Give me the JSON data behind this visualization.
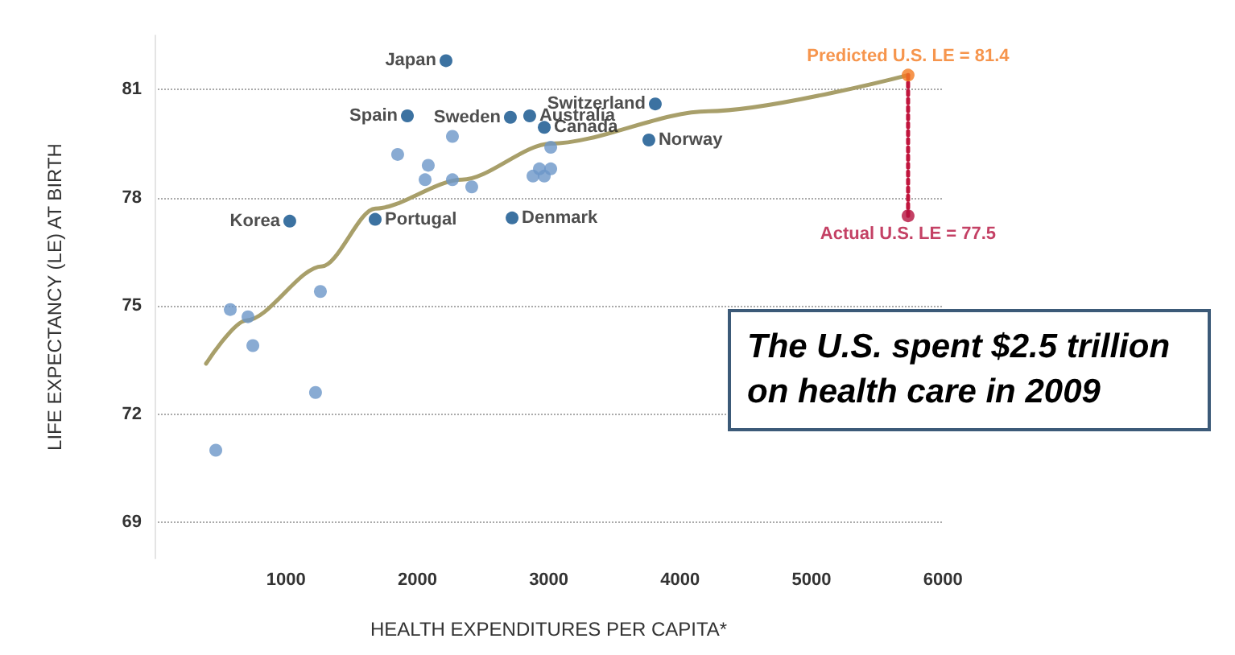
{
  "chart_data": {
    "type": "scatter",
    "xlabel": "HEALTH EXPENDITURES PER CAPITA*",
    "ylabel": "LIFE EXPECTANCY (LE) AT BIRTH",
    "annotations": [
      "The U.S. spent $2.5 trillion on health care in 2009"
    ],
    "xlim": [
      0,
      6000
    ],
    "xticks": [
      1000,
      2000,
      3000,
      4000,
      5000,
      6000
    ],
    "ylim": [
      68,
      82.5
    ],
    "yticks": [
      69,
      72,
      75,
      78,
      81
    ],
    "grid": "y",
    "marker": "circle",
    "series": [
      {
        "type": "line",
        "color": "#a89f6a",
        "x": [
          392,
          698,
          1275,
          1679,
          2340,
          3015,
          4216,
          5735
        ],
        "values": [
          73.4,
          74.6,
          76.1,
          77.7,
          78.5,
          79.5,
          80.4,
          81.4
        ],
        "marker": "none"
      },
      {
        "type": "line",
        "color": "#c0143c",
        "line_style": "dotted",
        "x": [
          5735,
          5735
        ],
        "values": [
          77.5,
          81.4
        ],
        "marker": "none"
      },
      {
        "color": "#6b96c8",
        "x": [
          2267,
          1850,
          2083,
          2059,
          2267,
          2414,
          3015,
          2880,
          2929,
          2966,
          3015,
          576,
          711,
          748,
          1262,
          1225,
          466
        ],
        "values": [
          79.7,
          79.2,
          78.9,
          78.5,
          78.5,
          78.3,
          79.4,
          78.6,
          78.8,
          78.6,
          78.8,
          74.9,
          74.7,
          73.9,
          75.4,
          72.6,
          71.0
        ]
      },
      {
        "name": "Japan",
        "color": "#0b4f8a",
        "x": [
          2218
        ],
        "values": [
          81.8
        ]
      },
      {
        "name": "Spain",
        "color": "#0b4f8a",
        "x": [
          1924
        ],
        "values": [
          80.27
        ]
      },
      {
        "name": "Sweden",
        "color": "#0b4f8a",
        "x": [
          2708
        ],
        "values": [
          80.23
        ]
      },
      {
        "name": "Australia",
        "color": "#0b4f8a",
        "x": [
          2855
        ],
        "values": [
          80.27
        ]
      },
      {
        "name": "Switzerland",
        "color": "#0b4f8a",
        "x": [
          3811
        ],
        "values": [
          80.6
        ]
      },
      {
        "name": "Canada",
        "color": "#0b4f8a",
        "x": [
          2966
        ],
        "values": [
          79.95
        ]
      },
      {
        "name": "Norway",
        "color": "#0b4f8a",
        "x": [
          3762
        ],
        "values": [
          79.6
        ]
      },
      {
        "name": "Korea",
        "color": "#0b4f8a",
        "x": [
          1029
        ],
        "values": [
          77.35
        ]
      },
      {
        "name": "Portugal",
        "color": "#0b4f8a",
        "x": [
          1679
        ],
        "values": [
          77.4
        ]
      },
      {
        "name": "Denmark",
        "color": "#0b4f8a",
        "x": [
          2721
        ],
        "values": [
          77.44
        ]
      },
      {
        "name": "Predicted U.S. LE = 81.4",
        "color": "#f47b20",
        "x": [
          5735
        ],
        "values": [
          81.4
        ]
      },
      {
        "name": "Actual U.S. LE = 77.5",
        "color": "#b5123e",
        "x": [
          5735
        ],
        "values": [
          77.5
        ]
      }
    ]
  }
}
